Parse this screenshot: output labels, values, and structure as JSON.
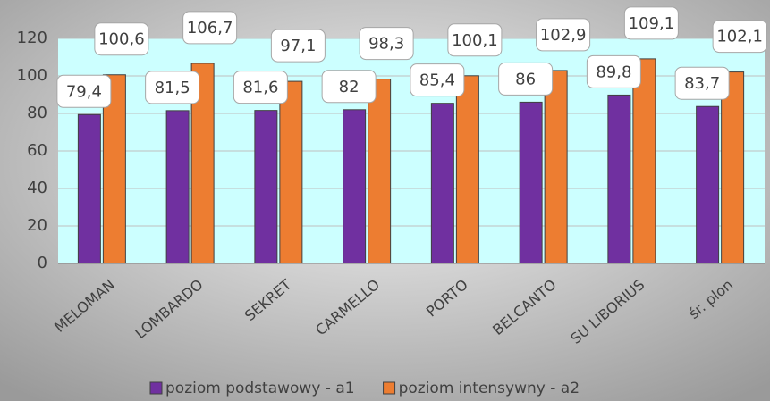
{
  "chart_data": {
    "type": "bar",
    "categories": [
      "MELOMAN",
      "LOMBARDO",
      "SEKRET",
      "CARMELLO",
      "PORTO",
      "BELCANTO",
      "SU LIBORIUS",
      "śr. plon"
    ],
    "series": [
      {
        "name": "poziom podstawowy -  a1",
        "color": "#7030a0",
        "values": [
          79.4,
          81.5,
          81.6,
          82,
          85.4,
          86,
          89.8,
          83.7
        ],
        "value_labels": [
          "79,4",
          "81,5",
          "81,6",
          "82",
          "85,4",
          "86",
          "89,8",
          "83,7"
        ]
      },
      {
        "name": "poziom intensywny - a2",
        "color": "#ed7d31",
        "values": [
          100.6,
          106.7,
          97.1,
          98.3,
          100.1,
          102.9,
          109.1,
          102.1
        ],
        "value_labels": [
          "100,6",
          "106,7",
          "97,1",
          "98,3",
          "100,1",
          "102,9",
          "109,1",
          "102,1"
        ]
      }
    ],
    "ylim": [
      0,
      120
    ],
    "yticks": [
      0,
      20,
      40,
      60,
      80,
      100,
      120
    ],
    "grid": true,
    "legend": "bottom"
  }
}
